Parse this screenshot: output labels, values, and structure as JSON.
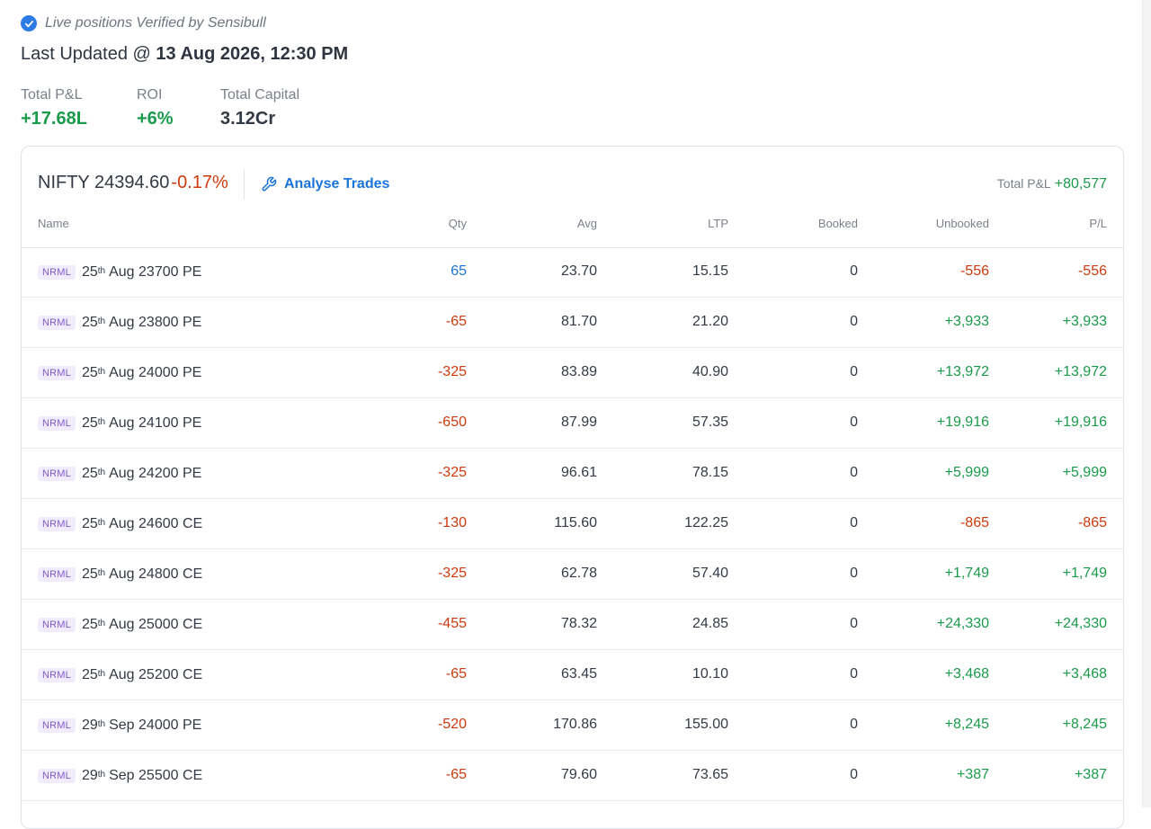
{
  "verified_text": "Live positions Verified by Sensibull",
  "last_updated": {
    "prefix": "Last Updated @ ",
    "datetime": "13 Aug 2026, 12:30 PM"
  },
  "stats": {
    "total_pnl": {
      "label": "Total P&L",
      "value": "+17.68L"
    },
    "roi": {
      "label": "ROI",
      "value": "+6%"
    },
    "total_capital": {
      "label": "Total Capital",
      "value": "3.12Cr"
    }
  },
  "card": {
    "symbol": "NIFTY",
    "price": "24394.60",
    "change": "-0.17%",
    "analyse_label": "Analyse Trades",
    "total_label": "Total P&L",
    "total_value": "+80,577"
  },
  "columns": [
    "Name",
    "Qty",
    "Avg",
    "LTP",
    "Booked",
    "Unbooked",
    "P/L"
  ],
  "rows": [
    {
      "product": "NRML",
      "day": "25",
      "suffix": "th",
      "instrument": "Aug 23700 PE",
      "qty": "65",
      "qty_sign": "pos",
      "avg": "23.70",
      "ltp": "15.15",
      "booked": "0",
      "unbooked": "-556",
      "pl": "-556"
    },
    {
      "product": "NRML",
      "day": "25",
      "suffix": "th",
      "instrument": "Aug 23800 PE",
      "qty": "-65",
      "qty_sign": "neg",
      "avg": "81.70",
      "ltp": "21.20",
      "booked": "0",
      "unbooked": "+3,933",
      "pl": "+3,933"
    },
    {
      "product": "NRML",
      "day": "25",
      "suffix": "th",
      "instrument": "Aug 24000 PE",
      "qty": "-325",
      "qty_sign": "neg",
      "avg": "83.89",
      "ltp": "40.90",
      "booked": "0",
      "unbooked": "+13,972",
      "pl": "+13,972"
    },
    {
      "product": "NRML",
      "day": "25",
      "suffix": "th",
      "instrument": "Aug 24100 PE",
      "qty": "-650",
      "qty_sign": "neg",
      "avg": "87.99",
      "ltp": "57.35",
      "booked": "0",
      "unbooked": "+19,916",
      "pl": "+19,916"
    },
    {
      "product": "NRML",
      "day": "25",
      "suffix": "th",
      "instrument": "Aug 24200 PE",
      "qty": "-325",
      "qty_sign": "neg",
      "avg": "96.61",
      "ltp": "78.15",
      "booked": "0",
      "unbooked": "+5,999",
      "pl": "+5,999"
    },
    {
      "product": "NRML",
      "day": "25",
      "suffix": "th",
      "instrument": "Aug 24600 CE",
      "qty": "-130",
      "qty_sign": "neg",
      "avg": "115.60",
      "ltp": "122.25",
      "booked": "0",
      "unbooked": "-865",
      "pl": "-865"
    },
    {
      "product": "NRML",
      "day": "25",
      "suffix": "th",
      "instrument": "Aug 24800 CE",
      "qty": "-325",
      "qty_sign": "neg",
      "avg": "62.78",
      "ltp": "57.40",
      "booked": "0",
      "unbooked": "+1,749",
      "pl": "+1,749"
    },
    {
      "product": "NRML",
      "day": "25",
      "suffix": "th",
      "instrument": "Aug 25000 CE",
      "qty": "-455",
      "qty_sign": "neg",
      "avg": "78.32",
      "ltp": "24.85",
      "booked": "0",
      "unbooked": "+24,330",
      "pl": "+24,330"
    },
    {
      "product": "NRML",
      "day": "25",
      "suffix": "th",
      "instrument": "Aug 25200 CE",
      "qty": "-65",
      "qty_sign": "neg",
      "avg": "63.45",
      "ltp": "10.10",
      "booked": "0",
      "unbooked": "+3,468",
      "pl": "+3,468"
    },
    {
      "product": "NRML",
      "day": "29",
      "suffix": "th",
      "instrument": "Sep 24000 PE",
      "qty": "-520",
      "qty_sign": "neg",
      "avg": "170.86",
      "ltp": "155.00",
      "booked": "0",
      "unbooked": "+8,245",
      "pl": "+8,245"
    },
    {
      "product": "NRML",
      "day": "29",
      "suffix": "th",
      "instrument": "Sep 25500 CE",
      "qty": "-65",
      "qty_sign": "neg",
      "avg": "79.60",
      "ltp": "73.65",
      "booked": "0",
      "unbooked": "+387",
      "pl": "+387"
    }
  ],
  "colors": {
    "positive": "#1a9a4b",
    "negative": "#cc3a0e",
    "long_qty": "#1a73d9",
    "accent": "#1a73d9",
    "badge": "#7c5cc4"
  },
  "icons": {
    "verified": "check-circle-icon",
    "analyse": "wrench-icon"
  }
}
